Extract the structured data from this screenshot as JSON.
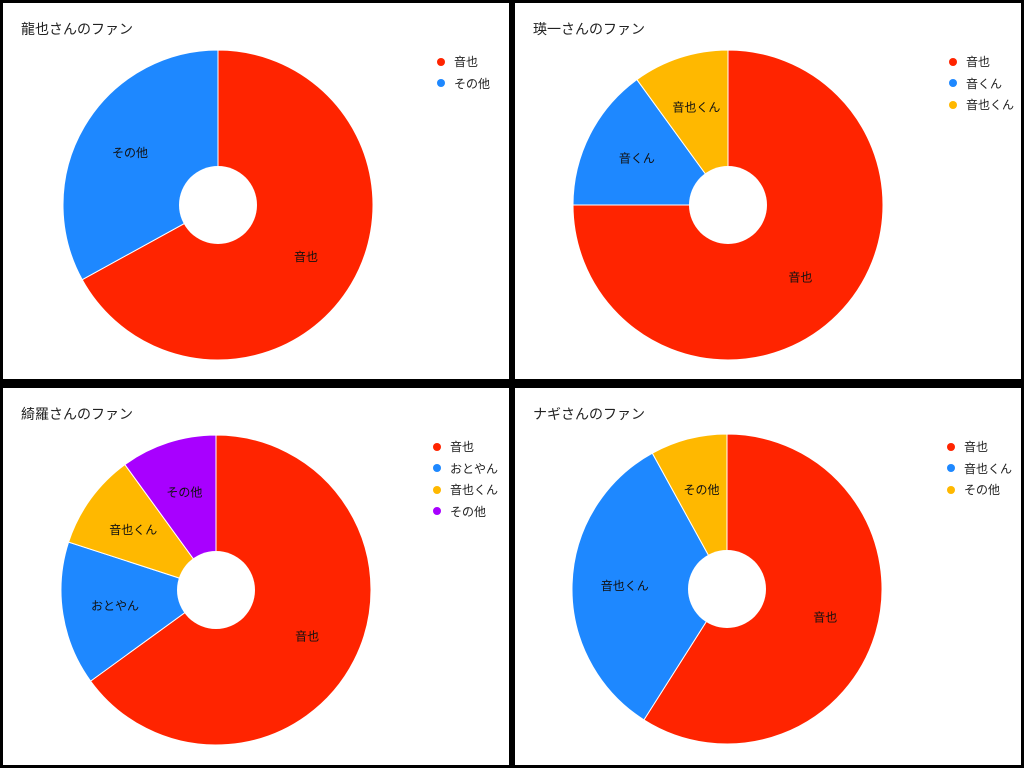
{
  "colors": {
    "red": "#FF2400",
    "blue": "#1E88FF",
    "yellow": "#FFB800",
    "purple": "#A800FF"
  },
  "chart_data": [
    {
      "type": "pie",
      "donut": true,
      "title": "龍也さんのファン",
      "legend_position": "top-right",
      "slices": [
        {
          "label": "音也",
          "value": 67,
          "color": "#FF2400"
        },
        {
          "label": "その他",
          "value": 33,
          "color": "#1E88FF"
        }
      ]
    },
    {
      "type": "pie",
      "donut": true,
      "title": "瑛一さんのファン",
      "legend_position": "top-right",
      "slices": [
        {
          "label": "音也",
          "value": 75,
          "color": "#FF2400"
        },
        {
          "label": "音くん",
          "value": 15,
          "color": "#1E88FF"
        },
        {
          "label": "音也くん",
          "value": 10,
          "color": "#FFB800"
        }
      ]
    },
    {
      "type": "pie",
      "donut": true,
      "title": "綺羅さんのファン",
      "legend_position": "top-right",
      "slices": [
        {
          "label": "音也",
          "value": 65,
          "color": "#FF2400"
        },
        {
          "label": "おとやん",
          "value": 15,
          "color": "#1E88FF"
        },
        {
          "label": "音也くん",
          "value": 10,
          "color": "#FFB800"
        },
        {
          "label": "その他",
          "value": 10,
          "color": "#A800FF"
        }
      ]
    },
    {
      "type": "pie",
      "donut": true,
      "title": "ナギさんのファン",
      "legend_position": "top-right",
      "slices": [
        {
          "label": "音也",
          "value": 59,
          "color": "#FF2400"
        },
        {
          "label": "音也くん",
          "value": 33,
          "color": "#1E88FF"
        },
        {
          "label": "その他",
          "value": 8,
          "color": "#FFB800"
        }
      ]
    }
  ]
}
